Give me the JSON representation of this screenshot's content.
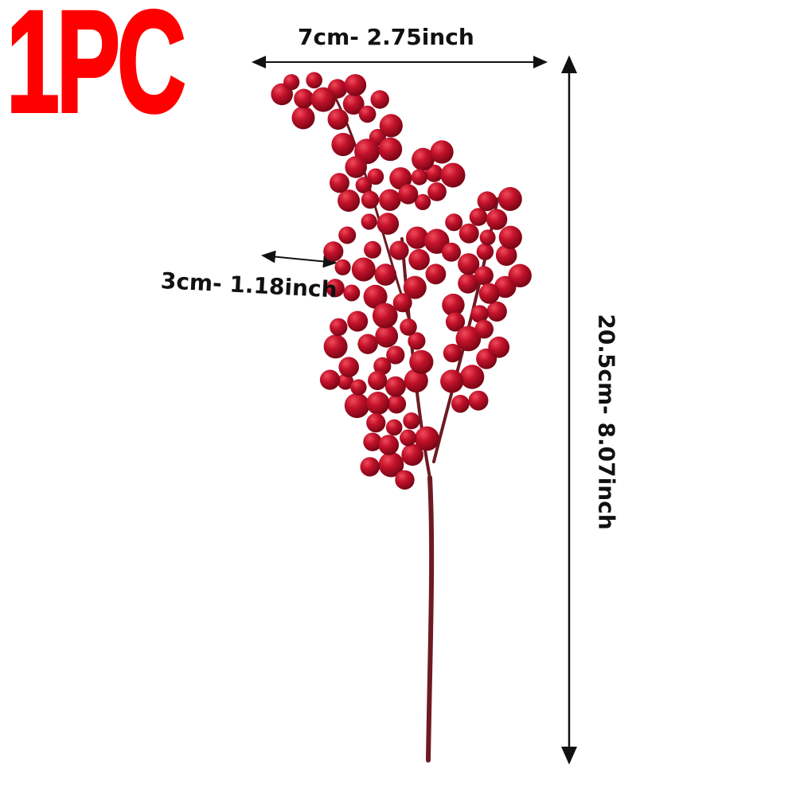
{
  "badge": {
    "text": "1PC",
    "color": "#ff0000"
  },
  "dimensions": {
    "width": "7cm- 2.75inch",
    "depth": "3cm- 1.18inch",
    "height": "20.5cm- 8.07inch"
  },
  "product": {
    "name": "red berry stem",
    "berry_color": "#c3122b",
    "stem_color": "#6e1a22"
  }
}
